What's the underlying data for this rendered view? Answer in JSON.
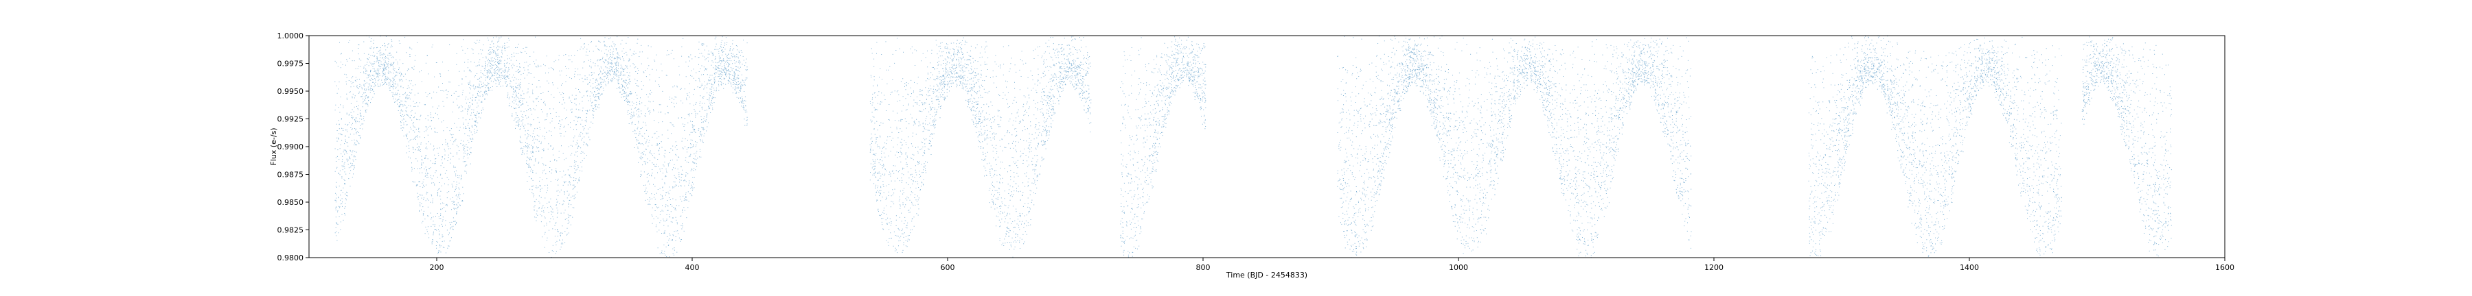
{
  "chart_data": {
    "type": "scatter",
    "title": "",
    "xlabel": "Time (BJD - 2454833)",
    "ylabel": "Flux (e-/s)",
    "xlim": [
      100,
      1600
    ],
    "ylim": [
      0.98,
      1.0
    ],
    "xticks": [
      200,
      400,
      600,
      800,
      1000,
      1200,
      1400,
      1600
    ],
    "xtick_labels": [
      "200",
      "400",
      "600",
      "800",
      "1000",
      "1200",
      "1400",
      "1600"
    ],
    "yticks": [
      0.98,
      0.9825,
      0.985,
      0.9875,
      0.99,
      0.9925,
      0.995,
      0.9975,
      1.0
    ],
    "ytick_labels": [
      "0.9800",
      "0.9825",
      "0.9850",
      "0.9875",
      "0.9900",
      "0.9925",
      "0.9950",
      "0.9975",
      "1.0000"
    ],
    "grid": false,
    "legend": null,
    "series": [
      {
        "color": "#1f77b4",
        "marker": "point",
        "segments": [
          {
            "x_start": 120,
            "x_end": 443
          },
          {
            "x_start": 539,
            "x_end": 712
          },
          {
            "x_start": 735,
            "x_end": 802
          },
          {
            "x_start": 905,
            "x_end": 1182
          },
          {
            "x_start": 1274,
            "x_end": 1472
          },
          {
            "x_start": 1488,
            "x_end": 1558
          }
        ],
        "flux_range": [
          0.98,
          1.0
        ],
        "notes": "dense light curve, thousands of points spanning full displayed flux range"
      }
    ]
  }
}
